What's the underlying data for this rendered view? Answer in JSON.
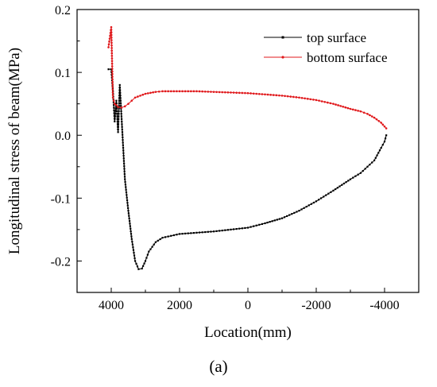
{
  "chart_data": {
    "type": "line",
    "title": "",
    "xlabel": "Location(mm)",
    "ylabel": "Longitudinal stress of  beam(MPa)",
    "xlim": [
      5000,
      -5000
    ],
    "ylim": [
      -0.25,
      0.2
    ],
    "x_reversed": true,
    "x_ticks": [
      4000,
      2000,
      0,
      -2000,
      -4000
    ],
    "x_tick_labels": [
      "4000",
      "2000",
      "0",
      "-2000",
      "-4000"
    ],
    "y_ticks": [
      -0.2,
      -0.1,
      0.0,
      0.1,
      0.2
    ],
    "y_tick_labels": [
      "-0.2",
      "-0.1",
      "0.0",
      "0.1",
      "0.2"
    ],
    "grid": false,
    "legend_position": "top-right",
    "panel_label": "(a)",
    "series": [
      {
        "name": "top surface",
        "color": "#000000",
        "marker": "square",
        "x": [
          4080,
          4000,
          3950,
          3900,
          3850,
          3800,
          3750,
          3700,
          3650,
          3600,
          3500,
          3400,
          3300,
          3200,
          3100,
          3000,
          2900,
          2700,
          2500,
          2000,
          1500,
          1000,
          500,
          0,
          -500,
          -1000,
          -1500,
          -2000,
          -2500,
          -3000,
          -3300,
          -3500,
          -3700,
          -3900,
          -4000,
          -4050
        ],
        "y": [
          0.105,
          0.105,
          0.07,
          0.022,
          0.055,
          0.005,
          0.08,
          0.03,
          -0.02,
          -0.07,
          -0.12,
          -0.165,
          -0.2,
          -0.213,
          -0.212,
          -0.2,
          -0.185,
          -0.17,
          -0.163,
          -0.157,
          -0.155,
          -0.153,
          -0.15,
          -0.147,
          -0.14,
          -0.132,
          -0.12,
          -0.105,
          -0.088,
          -0.07,
          -0.06,
          -0.05,
          -0.04,
          -0.02,
          -0.01,
          0.0
        ]
      },
      {
        "name": "bottom surface",
        "color": "#e0191c",
        "marker": "circle",
        "x": [
          4080,
          4000,
          3950,
          3900,
          3850,
          3800,
          3700,
          3600,
          3500,
          3400,
          3300,
          3000,
          2700,
          2500,
          2000,
          1500,
          1000,
          500,
          0,
          -500,
          -1000,
          -1500,
          -2000,
          -2500,
          -3000,
          -3300,
          -3500,
          -3700,
          -3900,
          -4000,
          -4050
        ],
        "y": [
          0.14,
          0.172,
          0.06,
          0.05,
          0.048,
          0.045,
          0.044,
          0.046,
          0.05,
          0.055,
          0.06,
          0.066,
          0.069,
          0.07,
          0.07,
          0.07,
          0.069,
          0.068,
          0.067,
          0.065,
          0.063,
          0.06,
          0.056,
          0.05,
          0.042,
          0.038,
          0.034,
          0.028,
          0.02,
          0.014,
          0.011
        ]
      }
    ]
  }
}
